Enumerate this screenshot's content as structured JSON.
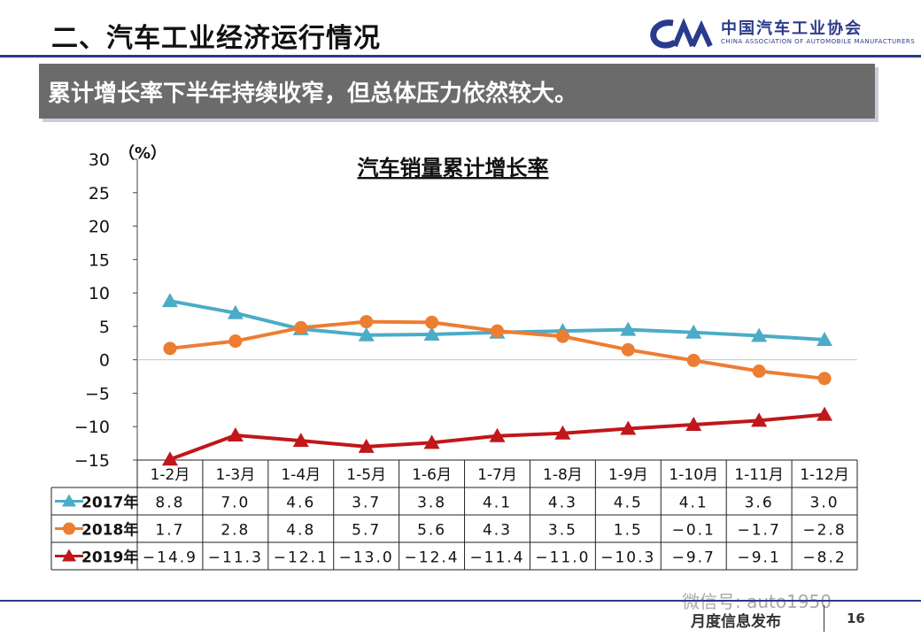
{
  "header": {
    "title": "二、汽车工业经济运行情况",
    "logo_cn": "中国汽车工业协会",
    "logo_en": "CHINA ASSOCIATION OF AUTOMOBILE MANUFACTURERS"
  },
  "banner": {
    "text": "累计增长率下半年持续收窄，但总体压力依然较大。"
  },
  "colors": {
    "s2017": "#4bacc6",
    "s2018": "#ed7d31",
    "s2019": "#c0171a",
    "brand": "#2a3a8c"
  },
  "chart_data": {
    "type": "line",
    "title": "汽车销量累计增长率",
    "ylabel": "（%）",
    "ylim": [
      -15,
      30
    ],
    "yticks": [
      "30",
      "25",
      "20",
      "15",
      "10",
      "5",
      "0",
      "−5",
      "−10",
      "−15"
    ],
    "categories": [
      "1-2月",
      "1-3月",
      "1-4月",
      "1-5月",
      "1-6月",
      "1-7月",
      "1-8月",
      "1-9月",
      "1-10月",
      "1-11月",
      "1-12月"
    ],
    "series": [
      {
        "name": "2017年",
        "marker": "triangle",
        "values": [
          8.8,
          7.0,
          4.6,
          3.7,
          3.8,
          4.1,
          4.3,
          4.5,
          4.1,
          3.6,
          3.0
        ],
        "labels": [
          "8.8",
          "7.0",
          "4.6",
          "3.7",
          "3.8",
          "4.1",
          "4.3",
          "4.5",
          "4.1",
          "3.6",
          "3.0"
        ]
      },
      {
        "name": "2018年",
        "marker": "circle",
        "values": [
          1.7,
          2.8,
          4.8,
          5.7,
          5.6,
          4.3,
          3.5,
          1.5,
          -0.1,
          -1.7,
          -2.8
        ],
        "labels": [
          "1.7",
          "2.8",
          "4.8",
          "5.7",
          "5.6",
          "4.3",
          "3.5",
          "1.5",
          "−0.1",
          "−1.7",
          "−2.8"
        ]
      },
      {
        "name": "2019年",
        "marker": "triangle",
        "values": [
          -14.9,
          -11.3,
          -12.1,
          -13.0,
          -12.4,
          -11.4,
          -11.0,
          -10.3,
          -9.7,
          -9.1,
          -8.2
        ],
        "labels": [
          "−14.9",
          "−11.3",
          "−12.1",
          "−13.0",
          "−12.4",
          "−11.4",
          "−11.0",
          "−10.3",
          "−9.7",
          "−9.1",
          "−8.2"
        ]
      }
    ]
  },
  "footer": {
    "label": "月度信息发布",
    "page": "16",
    "watermark": "微信号: auto1950"
  }
}
